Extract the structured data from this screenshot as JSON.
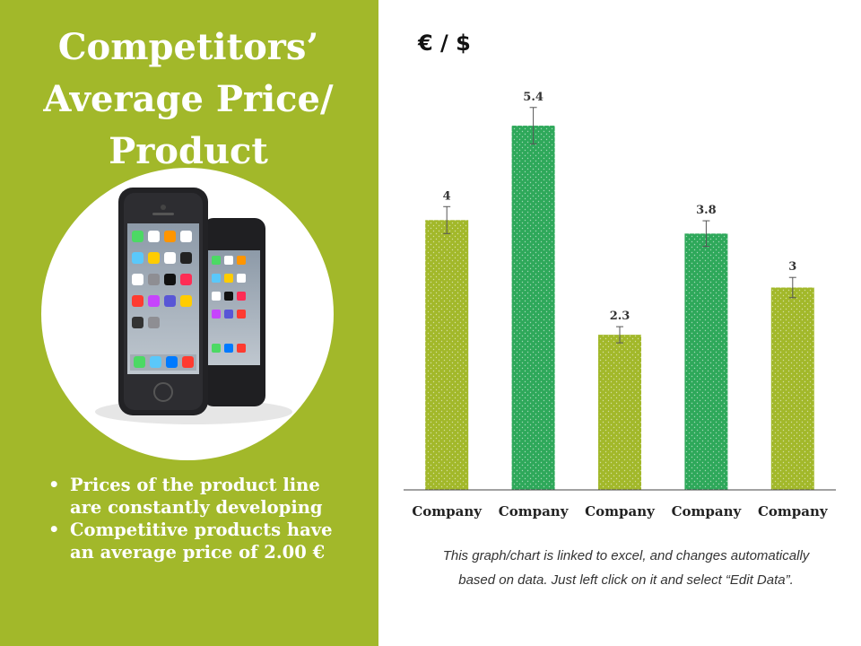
{
  "slide": {
    "title_lines": [
      "Competitors’",
      "Average Price/",
      "Product"
    ],
    "bullets": [
      "Prices of the product line are constantly developing",
      "Competitive products have an average price of 2.00 €"
    ],
    "note_lines": [
      "This graph/chart is linked to excel, and changes automatically",
      "based on data. Just left click on it and select “Edit Data”."
    ],
    "colors": {
      "panel": "#a2b82a",
      "white": "#ffffff"
    }
  },
  "chart_data": {
    "type": "bar",
    "unit_label": "€ / $",
    "categories": [
      "Company",
      "Company",
      "Company",
      "Company",
      "Company"
    ],
    "values": [
      4,
      5.4,
      2.3,
      3.8,
      3
    ],
    "data_labels": [
      "4",
      "5.4",
      "2.3",
      "3.8",
      "3"
    ],
    "error_bars": [
      0.2,
      0.27,
      0.12,
      0.19,
      0.15
    ],
    "bar_colors": [
      "#a2b82a",
      "#2ea85a",
      "#a2b82a",
      "#2ea85a",
      "#a2b82a"
    ],
    "ylim": [
      0,
      5.8
    ],
    "grid": false,
    "legend": "none"
  }
}
